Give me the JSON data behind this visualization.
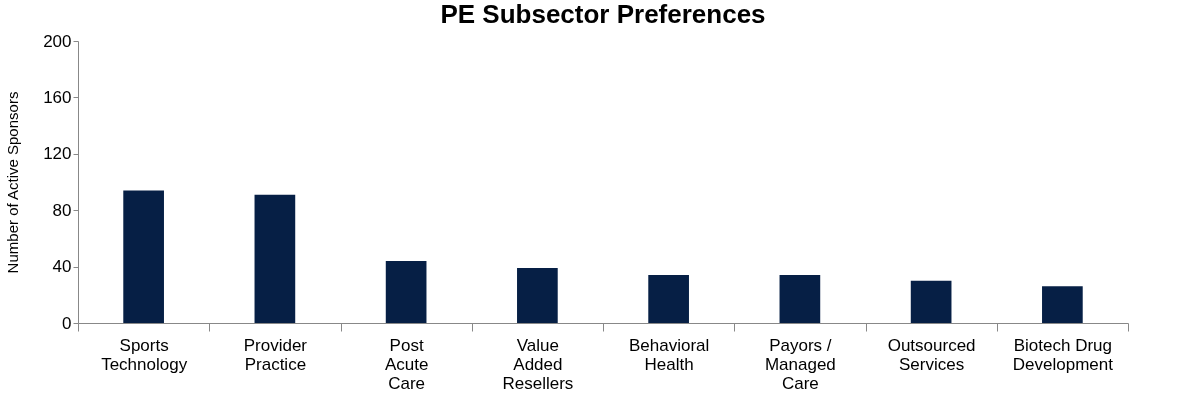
{
  "chart_data": {
    "type": "bar",
    "title": "PE Subsector Preferences",
    "ylabel": "Number of Active Sponsors",
    "categories": [
      "Sports\nTechnology",
      "Provider\nPractice",
      "Post\nAcute\nCare",
      "Value\nAdded\nResellers",
      "Behavioral\nHealth",
      "Payors /\nManaged\nCare",
      "Outsourced\nServices",
      "Biotech Drug\nDevelopment"
    ],
    "values": [
      94,
      91,
      44,
      39,
      34,
      34,
      30,
      26
    ],
    "color": "#061f45",
    "ylim": [
      0,
      200
    ],
    "yticks": [
      0,
      40,
      80,
      120,
      160,
      200
    ],
    "grid": false
  }
}
